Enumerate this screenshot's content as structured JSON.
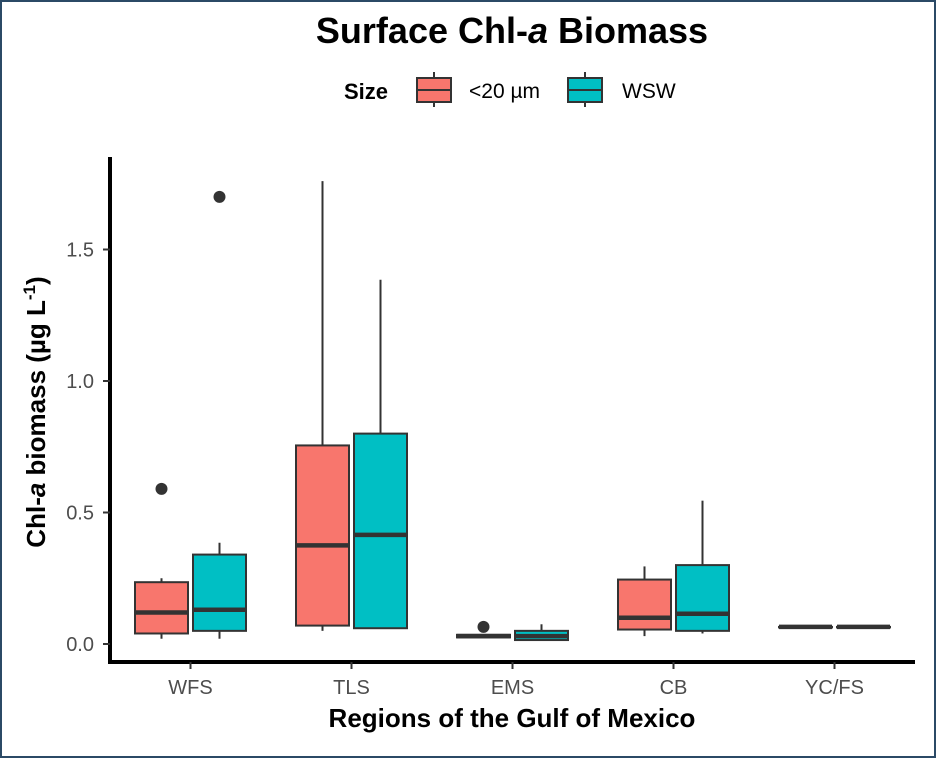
{
  "chart_data": {
    "type": "boxplot",
    "title_parts": [
      "Surface Chl-",
      "a",
      " Biomass"
    ],
    "xlabel": "Regions of the Gulf of Mexico",
    "ylabel_parts": [
      "Chl-",
      "a",
      " biomass (µg L",
      "-1",
      ")"
    ],
    "ylim": [
      -0.05,
      1.85
    ],
    "yticks": [
      0.0,
      0.5,
      1.0,
      1.5
    ],
    "ytick_labels": [
      "0.0",
      "0.5",
      "1.0",
      "1.5"
    ],
    "legend": {
      "title": "Size",
      "position": "top",
      "entries": [
        {
          "name": "<20 µm",
          "color": "#f8766d"
        },
        {
          "name": "WSW",
          "color": "#00bfc4"
        }
      ]
    },
    "categories": [
      "WFS",
      "TLS",
      "EMS",
      "CB",
      "YC/FS"
    ],
    "series": [
      {
        "name": "<20 µm",
        "color": "#f8766d",
        "boxes": [
          {
            "min": 0.02,
            "q1": 0.04,
            "median": 0.12,
            "q3": 0.235,
            "max": 0.25,
            "outliers": [
              0.59
            ]
          },
          {
            "min": 0.05,
            "q1": 0.07,
            "median": 0.375,
            "q3": 0.755,
            "max": 1.76,
            "outliers": []
          },
          {
            "min": 0.025,
            "q1": 0.025,
            "median": 0.03,
            "q3": 0.035,
            "max": 0.035,
            "outliers": [
              0.065
            ]
          },
          {
            "min": 0.03,
            "q1": 0.055,
            "median": 0.1,
            "q3": 0.245,
            "max": 0.295,
            "outliers": []
          },
          {
            "min": 0.065,
            "q1": 0.065,
            "median": 0.065,
            "q3": 0.065,
            "max": 0.065,
            "outliers": []
          }
        ]
      },
      {
        "name": "WSW",
        "color": "#00bfc4",
        "boxes": [
          {
            "min": 0.02,
            "q1": 0.05,
            "median": 0.13,
            "q3": 0.34,
            "max": 0.385,
            "outliers": [
              1.7
            ]
          },
          {
            "min": 0.06,
            "q1": 0.06,
            "median": 0.415,
            "q3": 0.8,
            "max": 1.385,
            "outliers": []
          },
          {
            "min": 0.015,
            "q1": 0.015,
            "median": 0.03,
            "q3": 0.05,
            "max": 0.075,
            "outliers": []
          },
          {
            "min": 0.04,
            "q1": 0.05,
            "median": 0.115,
            "q3": 0.3,
            "max": 0.545,
            "outliers": []
          },
          {
            "min": 0.065,
            "q1": 0.065,
            "median": 0.065,
            "q3": 0.065,
            "max": 0.065,
            "outliers": []
          }
        ]
      }
    ]
  }
}
